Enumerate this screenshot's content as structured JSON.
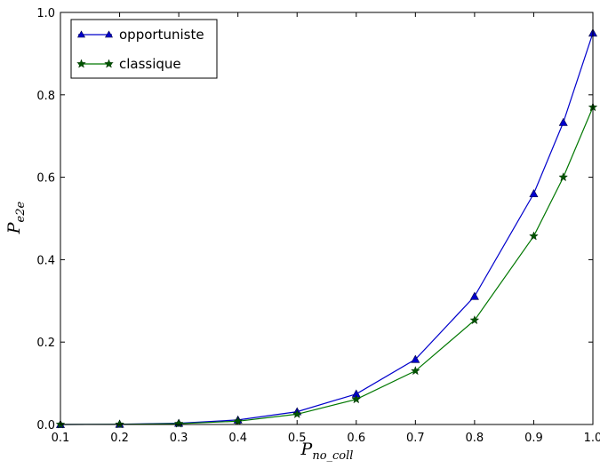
{
  "chart_data": {
    "type": "line",
    "title": "",
    "xlabel": "P_no_coll",
    "ylabel": "P_e2e",
    "xlim": [
      0.1,
      1.0
    ],
    "ylim": [
      0.0,
      1.0
    ],
    "xticks": [
      "0.1",
      "0.2",
      "0.3",
      "0.4",
      "0.5",
      "0.6",
      "0.7",
      "0.8",
      "0.9",
      "1.0"
    ],
    "yticks": [
      "0.0",
      "0.2",
      "0.4",
      "0.6",
      "0.8",
      "1.0"
    ],
    "grid": false,
    "legend_position": "top-left",
    "series": [
      {
        "name": "opportuniste",
        "color": "#0000cc",
        "marker": "triangle",
        "x": [
          0.1,
          0.2,
          0.3,
          0.4,
          0.5,
          0.6,
          0.7,
          0.8,
          0.9,
          0.95,
          1.0
        ],
        "y": [
          0.0,
          0.0005,
          0.003,
          0.011,
          0.031,
          0.074,
          0.158,
          0.311,
          0.56,
          0.733,
          0.95
        ]
      },
      {
        "name": "classique",
        "color": "#007700",
        "marker": "star",
        "x": [
          0.1,
          0.2,
          0.3,
          0.4,
          0.5,
          0.6,
          0.7,
          0.8,
          0.9,
          0.95,
          1.0
        ],
        "y": [
          0.0,
          0.0004,
          0.002,
          0.008,
          0.025,
          0.061,
          0.13,
          0.253,
          0.457,
          0.6,
          0.77
        ]
      }
    ]
  }
}
